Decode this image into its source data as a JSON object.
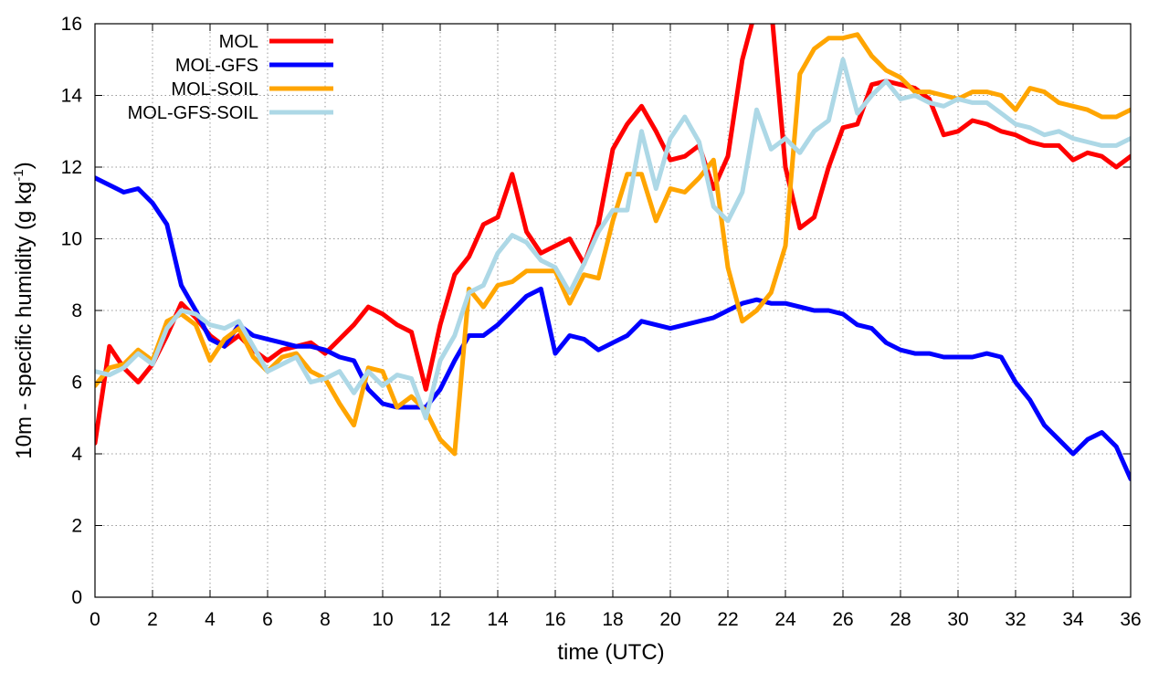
{
  "chart_data": {
    "type": "line",
    "title": "",
    "xlabel": "time (UTC)",
    "ylabel_main": "10m - specific humidity (g kg",
    "ylabel_sup": "-1",
    "ylabel_end": ")",
    "xlim": [
      0,
      36
    ],
    "ylim": [
      0,
      16
    ],
    "xticks": [
      "0",
      "2",
      "4",
      "6",
      "8",
      "10",
      "12",
      "14",
      "16",
      "18",
      "20",
      "22",
      "24",
      "26",
      "28",
      "30",
      "32",
      "34",
      "36"
    ],
    "yticks": [
      "0",
      "2",
      "4",
      "6",
      "8",
      "10",
      "12",
      "14",
      "16"
    ],
    "grid": true,
    "legend_position": "top-left",
    "series": [
      {
        "name": "MOL",
        "color": "#ff0000",
        "points": [
          [
            0,
            4.3
          ],
          [
            0.5,
            7.0
          ],
          [
            1,
            6.4
          ],
          [
            1.5,
            6.0
          ],
          [
            2,
            6.5
          ],
          [
            2.5,
            7.3
          ],
          [
            3,
            8.2
          ],
          [
            3.5,
            7.8
          ],
          [
            4,
            7.3
          ],
          [
            4.5,
            7.0
          ],
          [
            5,
            7.3
          ],
          [
            5.5,
            6.9
          ],
          [
            6,
            6.6
          ],
          [
            6.5,
            6.9
          ],
          [
            7,
            7.0
          ],
          [
            7.5,
            7.1
          ],
          [
            8,
            6.8
          ],
          [
            8.5,
            7.2
          ],
          [
            9,
            7.6
          ],
          [
            9.5,
            8.1
          ],
          [
            10,
            7.9
          ],
          [
            10.5,
            7.6
          ],
          [
            11,
            7.4
          ],
          [
            11.5,
            5.8
          ],
          [
            12,
            7.6
          ],
          [
            12.5,
            9.0
          ],
          [
            13,
            9.5
          ],
          [
            13.5,
            10.4
          ],
          [
            14,
            10.6
          ],
          [
            14.5,
            11.8
          ],
          [
            15,
            10.2
          ],
          [
            15.5,
            9.6
          ],
          [
            16,
            9.8
          ],
          [
            16.5,
            10.0
          ],
          [
            17,
            9.3
          ],
          [
            17.5,
            10.4
          ],
          [
            18,
            12.5
          ],
          [
            18.5,
            13.2
          ],
          [
            19,
            13.7
          ],
          [
            19.5,
            13.0
          ],
          [
            20,
            12.2
          ],
          [
            20.5,
            12.3
          ],
          [
            21,
            12.6
          ],
          [
            21.5,
            11.4
          ],
          [
            22,
            12.3
          ],
          [
            22.5,
            15.0
          ],
          [
            23,
            16.5
          ],
          [
            23.5,
            16.5
          ],
          [
            24,
            12.0
          ],
          [
            24.5,
            10.3
          ],
          [
            25,
            10.6
          ],
          [
            25.5,
            12.0
          ],
          [
            26,
            13.1
          ],
          [
            26.5,
            13.2
          ],
          [
            27,
            14.3
          ],
          [
            27.5,
            14.4
          ],
          [
            28,
            14.3
          ],
          [
            28.5,
            14.2
          ],
          [
            29,
            13.9
          ],
          [
            29.5,
            12.9
          ],
          [
            30,
            13.0
          ],
          [
            30.5,
            13.3
          ],
          [
            31,
            13.2
          ],
          [
            31.5,
            13.0
          ],
          [
            32,
            12.9
          ],
          [
            32.5,
            12.7
          ],
          [
            33,
            12.6
          ],
          [
            33.5,
            12.6
          ],
          [
            34,
            12.2
          ],
          [
            34.5,
            12.4
          ],
          [
            35,
            12.3
          ],
          [
            35.5,
            12.0
          ],
          [
            36,
            12.3
          ]
        ]
      },
      {
        "name": "MOL-GFS",
        "color": "#0000ff",
        "points": [
          [
            0,
            11.7
          ],
          [
            0.5,
            11.5
          ],
          [
            1,
            11.3
          ],
          [
            1.5,
            11.4
          ],
          [
            2,
            11.0
          ],
          [
            2.5,
            10.4
          ],
          [
            3,
            8.7
          ],
          [
            3.5,
            8.0
          ],
          [
            4,
            7.2
          ],
          [
            4.5,
            7.0
          ],
          [
            5,
            7.6
          ],
          [
            5.5,
            7.3
          ],
          [
            6,
            7.2
          ],
          [
            6.5,
            7.1
          ],
          [
            7,
            7.0
          ],
          [
            7.5,
            7.0
          ],
          [
            8,
            6.9
          ],
          [
            8.5,
            6.7
          ],
          [
            9,
            6.6
          ],
          [
            9.5,
            5.8
          ],
          [
            10,
            5.4
          ],
          [
            10.5,
            5.3
          ],
          [
            11,
            5.3
          ],
          [
            11.5,
            5.3
          ],
          [
            12,
            5.8
          ],
          [
            12.5,
            6.6
          ],
          [
            13,
            7.3
          ],
          [
            13.5,
            7.3
          ],
          [
            14,
            7.6
          ],
          [
            14.5,
            8.0
          ],
          [
            15,
            8.4
          ],
          [
            15.5,
            8.6
          ],
          [
            16,
            6.8
          ],
          [
            16.5,
            7.3
          ],
          [
            17,
            7.2
          ],
          [
            17.5,
            6.9
          ],
          [
            18,
            7.1
          ],
          [
            18.5,
            7.3
          ],
          [
            19,
            7.7
          ],
          [
            19.5,
            7.6
          ],
          [
            20,
            7.5
          ],
          [
            20.5,
            7.6
          ],
          [
            21,
            7.7
          ],
          [
            21.5,
            7.8
          ],
          [
            22,
            8.0
          ],
          [
            22.5,
            8.2
          ],
          [
            23,
            8.3
          ],
          [
            23.5,
            8.2
          ],
          [
            24,
            8.2
          ],
          [
            24.5,
            8.1
          ],
          [
            25,
            8.0
          ],
          [
            25.5,
            8.0
          ],
          [
            26,
            7.9
          ],
          [
            26.5,
            7.6
          ],
          [
            27,
            7.5
          ],
          [
            27.5,
            7.1
          ],
          [
            28,
            6.9
          ],
          [
            28.5,
            6.8
          ],
          [
            29,
            6.8
          ],
          [
            29.5,
            6.7
          ],
          [
            30,
            6.7
          ],
          [
            30.5,
            6.7
          ],
          [
            31,
            6.8
          ],
          [
            31.5,
            6.7
          ],
          [
            32,
            6.0
          ],
          [
            32.5,
            5.5
          ],
          [
            33,
            4.8
          ],
          [
            33.5,
            4.4
          ],
          [
            34,
            4.0
          ],
          [
            34.5,
            4.4
          ],
          [
            35,
            4.6
          ],
          [
            35.5,
            4.2
          ],
          [
            36,
            3.3
          ]
        ]
      },
      {
        "name": "MOL-SOIL",
        "color": "#ffa500",
        "points": [
          [
            0,
            5.9
          ],
          [
            0.5,
            6.4
          ],
          [
            1,
            6.5
          ],
          [
            1.5,
            6.9
          ],
          [
            2,
            6.6
          ],
          [
            2.5,
            7.7
          ],
          [
            3,
            7.9
          ],
          [
            3.5,
            7.6
          ],
          [
            4,
            6.6
          ],
          [
            4.5,
            7.2
          ],
          [
            5,
            7.5
          ],
          [
            5.5,
            6.7
          ],
          [
            6,
            6.3
          ],
          [
            6.5,
            6.7
          ],
          [
            7,
            6.8
          ],
          [
            7.5,
            6.3
          ],
          [
            8,
            6.1
          ],
          [
            8.5,
            5.4
          ],
          [
            9,
            4.8
          ],
          [
            9.5,
            6.4
          ],
          [
            10,
            6.3
          ],
          [
            10.5,
            5.3
          ],
          [
            11,
            5.6
          ],
          [
            11.5,
            5.2
          ],
          [
            12,
            4.4
          ],
          [
            12.5,
            4.0
          ],
          [
            13,
            8.6
          ],
          [
            13.5,
            8.1
          ],
          [
            14,
            8.7
          ],
          [
            14.5,
            8.8
          ],
          [
            15,
            9.1
          ],
          [
            15.5,
            9.1
          ],
          [
            16,
            9.1
          ],
          [
            16.5,
            8.2
          ],
          [
            17,
            9.0
          ],
          [
            17.5,
            8.9
          ],
          [
            18,
            10.5
          ],
          [
            18.5,
            11.8
          ],
          [
            19,
            11.8
          ],
          [
            19.5,
            10.5
          ],
          [
            20,
            11.4
          ],
          [
            20.5,
            11.3
          ],
          [
            21,
            11.7
          ],
          [
            21.5,
            12.2
          ],
          [
            22,
            9.2
          ],
          [
            22.5,
            7.7
          ],
          [
            23,
            8.0
          ],
          [
            23.5,
            8.5
          ],
          [
            24,
            9.8
          ],
          [
            24.5,
            14.6
          ],
          [
            25,
            15.3
          ],
          [
            25.5,
            15.6
          ],
          [
            26,
            15.6
          ],
          [
            26.5,
            15.7
          ],
          [
            27,
            15.1
          ],
          [
            27.5,
            14.7
          ],
          [
            28,
            14.5
          ],
          [
            28.5,
            14.1
          ],
          [
            29,
            14.1
          ],
          [
            29.5,
            14.0
          ],
          [
            30,
            13.9
          ],
          [
            30.5,
            14.1
          ],
          [
            31,
            14.1
          ],
          [
            31.5,
            14.0
          ],
          [
            32,
            13.6
          ],
          [
            32.5,
            14.2
          ],
          [
            33,
            14.1
          ],
          [
            33.5,
            13.8
          ],
          [
            34,
            13.7
          ],
          [
            34.5,
            13.6
          ],
          [
            35,
            13.4
          ],
          [
            35.5,
            13.4
          ],
          [
            36,
            13.6
          ]
        ]
      },
      {
        "name": "MOL-GFS-SOIL",
        "color": "#add8e6",
        "points": [
          [
            0,
            6.3
          ],
          [
            0.5,
            6.2
          ],
          [
            1,
            6.4
          ],
          [
            1.5,
            6.8
          ],
          [
            2,
            6.5
          ],
          [
            2.5,
            7.5
          ],
          [
            3,
            8.0
          ],
          [
            3.5,
            7.9
          ],
          [
            4,
            7.6
          ],
          [
            4.5,
            7.5
          ],
          [
            5,
            7.7
          ],
          [
            5.5,
            7.0
          ],
          [
            6,
            6.3
          ],
          [
            6.5,
            6.5
          ],
          [
            7,
            6.7
          ],
          [
            7.5,
            6.0
          ],
          [
            8,
            6.1
          ],
          [
            8.5,
            6.3
          ],
          [
            9,
            5.7
          ],
          [
            9.5,
            6.3
          ],
          [
            10,
            5.9
          ],
          [
            10.5,
            6.2
          ],
          [
            11,
            6.1
          ],
          [
            11.5,
            5.0
          ],
          [
            12,
            6.6
          ],
          [
            12.5,
            7.3
          ],
          [
            13,
            8.5
          ],
          [
            13.5,
            8.7
          ],
          [
            14,
            9.6
          ],
          [
            14.5,
            10.1
          ],
          [
            15,
            9.9
          ],
          [
            15.5,
            9.4
          ],
          [
            16,
            9.2
          ],
          [
            16.5,
            8.5
          ],
          [
            17,
            9.3
          ],
          [
            17.5,
            10.2
          ],
          [
            18,
            10.8
          ],
          [
            18.5,
            10.8
          ],
          [
            19,
            13.0
          ],
          [
            19.5,
            11.4
          ],
          [
            20,
            12.8
          ],
          [
            20.5,
            13.4
          ],
          [
            21,
            12.7
          ],
          [
            21.5,
            10.9
          ],
          [
            22,
            10.5
          ],
          [
            22.5,
            11.3
          ],
          [
            23,
            13.6
          ],
          [
            23.5,
            12.5
          ],
          [
            24,
            12.8
          ],
          [
            24.5,
            12.4
          ],
          [
            25,
            13.0
          ],
          [
            25.5,
            13.3
          ],
          [
            26,
            15.0
          ],
          [
            26.5,
            13.5
          ],
          [
            27,
            14.0
          ],
          [
            27.5,
            14.4
          ],
          [
            28,
            13.9
          ],
          [
            28.5,
            14.0
          ],
          [
            29,
            13.8
          ],
          [
            29.5,
            13.7
          ],
          [
            30,
            13.9
          ],
          [
            30.5,
            13.8
          ],
          [
            31,
            13.8
          ],
          [
            31.5,
            13.5
          ],
          [
            32,
            13.2
          ],
          [
            32.5,
            13.1
          ],
          [
            33,
            12.9
          ],
          [
            33.5,
            13.0
          ],
          [
            34,
            12.8
          ],
          [
            34.5,
            12.7
          ],
          [
            35,
            12.6
          ],
          [
            35.5,
            12.6
          ],
          [
            36,
            12.8
          ]
        ]
      }
    ]
  }
}
